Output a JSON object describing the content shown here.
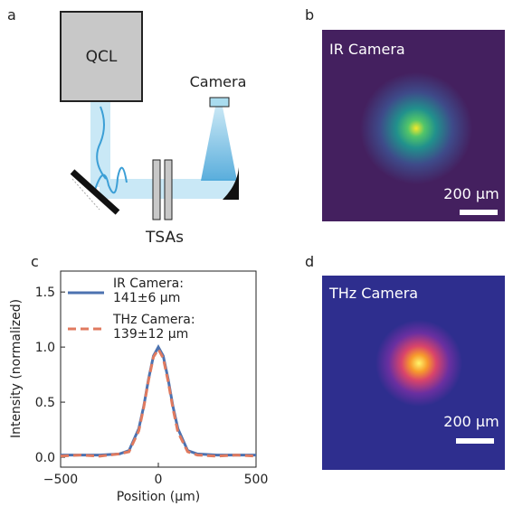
{
  "panel_labels": [
    "a",
    "b",
    "c",
    "d"
  ],
  "diagram": {
    "source": "QCL",
    "camera": "Camera",
    "component": "TSAs"
  },
  "images": [
    {
      "title": "IR Camera",
      "scale_bar": "200 µm"
    },
    {
      "title": "THz Camera",
      "scale_bar": "200 µm"
    }
  ],
  "chart_data": {
    "type": "line",
    "xlabel": "Position (µm)",
    "ylabel": "Intensity (normalized)",
    "x": [
      -500,
      -400,
      -300,
      -200,
      -150,
      -100,
      -75,
      -50,
      -25,
      0,
      25,
      50,
      75,
      100,
      150,
      200,
      300,
      400,
      500
    ],
    "series": [
      {
        "name": "IR Camera: 141±6 µm",
        "color": "#4c72b0",
        "style": "solid",
        "values": [
          0.02,
          0.02,
          0.02,
          0.03,
          0.06,
          0.26,
          0.46,
          0.71,
          0.92,
          1.0,
          0.92,
          0.71,
          0.46,
          0.26,
          0.06,
          0.03,
          0.02,
          0.02,
          0.02
        ]
      },
      {
        "name": "THz Camera: 139±12 µm",
        "color": "#e07a5f",
        "style": "dashed",
        "values": [
          0.01,
          0.02,
          0.01,
          0.03,
          0.05,
          0.24,
          0.45,
          0.7,
          0.91,
          0.98,
          0.9,
          0.69,
          0.44,
          0.23,
          0.05,
          0.02,
          0.01,
          0.02,
          0.01
        ]
      }
    ],
    "xlim": [
      -500,
      500
    ],
    "ylim": [
      -0.09,
      1.69
    ],
    "xticks": [
      {
        "value": -500,
        "label": "−500"
      },
      0,
      500
    ],
    "yticks": [
      {
        "value": 0,
        "label": "0.0"
      },
      0.5,
      {
        "value": 1,
        "label": "1.0"
      },
      1.5
    ]
  }
}
